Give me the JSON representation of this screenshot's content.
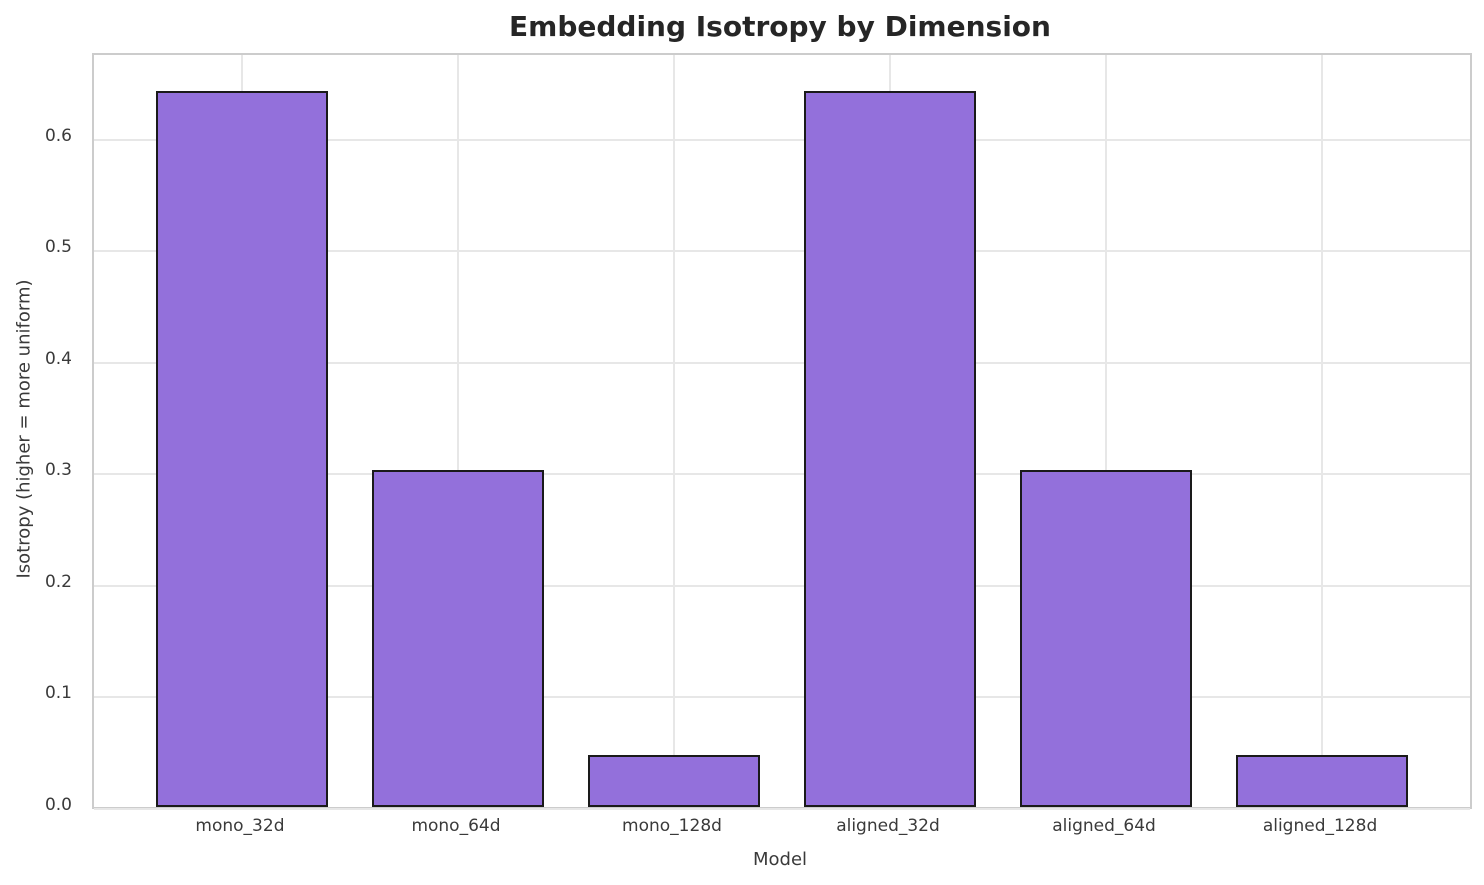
{
  "chart_data": {
    "type": "bar",
    "title": "Embedding Isotropy by Dimension",
    "xlabel": "Model",
    "ylabel": "Isotropy (higher = more uniform)",
    "categories": [
      "mono_32d",
      "mono_64d",
      "mono_128d",
      "aligned_32d",
      "aligned_64d",
      "aligned_128d"
    ],
    "values": [
      0.642,
      0.302,
      0.047,
      0.642,
      0.302,
      0.047
    ],
    "ytick_labels": [
      "0.0",
      "0.1",
      "0.2",
      "0.3",
      "0.4",
      "0.5",
      "0.6"
    ],
    "ytick_values": [
      0.0,
      0.1,
      0.2,
      0.3,
      0.4,
      0.5,
      0.6
    ],
    "ylim": [
      0,
      0.674
    ],
    "x_edge_padding_units": 0.685,
    "bar_width_fraction": 0.8,
    "grid": true,
    "legend": "none",
    "colors": {
      "bar_fill": "#9370DB",
      "bar_edge": "#1a1a1a",
      "grid_line": "#e7e7e7",
      "spine": "#cccccc",
      "title_text": "#262626",
      "tick_text": "#3a3a3a",
      "background": "#ffffff"
    }
  }
}
